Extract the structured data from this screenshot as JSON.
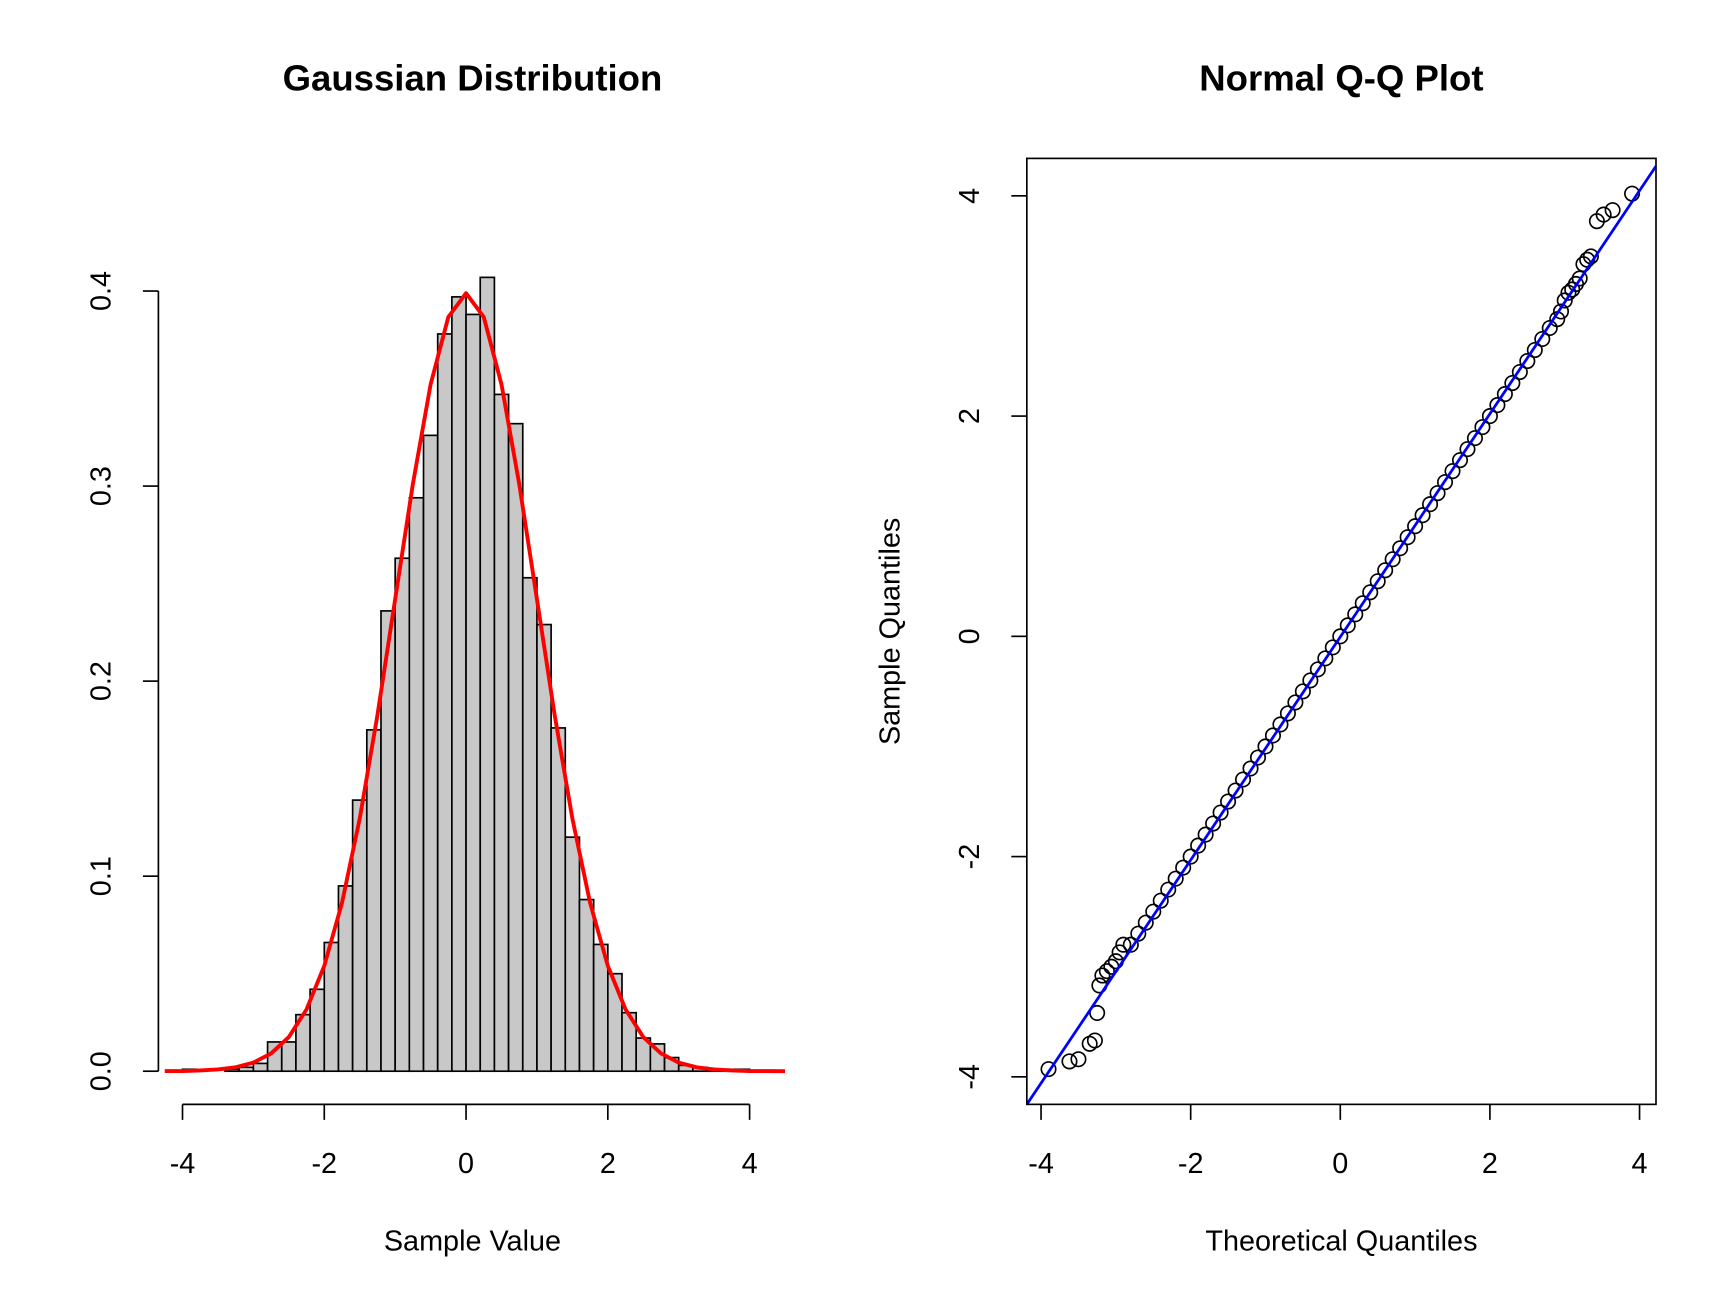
{
  "chart_data": [
    {
      "type": "histogram",
      "title": "Gaussian Distribution",
      "x_label": "Sample Value",
      "bins": [
        -4.0,
        -3.8,
        -3.6,
        -3.4,
        -3.2,
        -3.0,
        -2.8,
        -2.6,
        -2.4,
        -2.2,
        -2.0,
        -1.8,
        -1.6,
        -1.4,
        -1.2,
        -1.0,
        -0.8,
        -0.6,
        -0.4,
        -0.2,
        0.0,
        0.2,
        0.4,
        0.6,
        0.8,
        1.0,
        1.2,
        1.4,
        1.6,
        1.8,
        2.0,
        2.2,
        2.4,
        2.6,
        2.8,
        3.0,
        3.2,
        3.4,
        3.6,
        3.8,
        4.0
      ],
      "values": [
        0.001,
        0,
        0,
        0.001,
        0.002,
        0.004,
        0.015,
        0.015,
        0.029,
        0.042,
        0.066,
        0.095,
        0.139,
        0.175,
        0.236,
        0.263,
        0.294,
        0.326,
        0.378,
        0.397,
        0.388,
        0.407,
        0.347,
        0.332,
        0.253,
        0.229,
        0.176,
        0.12,
        0.088,
        0.065,
        0.05,
        0.03,
        0.017,
        0.014,
        0.007,
        0.003,
        0.002,
        0.001,
        0.001,
        0.001
      ],
      "color": "#c8c8c8",
      "density": {
        "color": "#ff0000",
        "x": [
          -4.25,
          -4,
          -3.75,
          -3.5,
          -3.25,
          -3,
          -2.75,
          -2.5,
          -2.25,
          -2,
          -1.75,
          -1.5,
          -1.25,
          -1,
          -0.75,
          -0.5,
          -0.25,
          0,
          0.25,
          0.5,
          0.75,
          1,
          1.25,
          1.5,
          1.75,
          2,
          2.25,
          2.5,
          2.75,
          3,
          3.25,
          3.5,
          3.75,
          4,
          4.25,
          4.5
        ],
        "values": [
          0.0001,
          0.0001,
          0.0004,
          0.0009,
          0.002,
          0.0044,
          0.0091,
          0.0175,
          0.0317,
          0.054,
          0.0863,
          0.1295,
          0.1826,
          0.242,
          0.3011,
          0.3521,
          0.3867,
          0.3989,
          0.3867,
          0.3521,
          0.3011,
          0.242,
          0.1826,
          0.1295,
          0.0863,
          0.054,
          0.0317,
          0.0175,
          0.0091,
          0.0044,
          0.002,
          0.0009,
          0.0004,
          0.0001,
          0.0001,
          0
        ]
      },
      "xlim": [
        -4.34,
        4.52
      ],
      "ylim": [
        -0.017,
        0.468
      ],
      "xticks": [
        -4,
        -2,
        0,
        2,
        4
      ],
      "yticks": [
        {
          "value": 0,
          "label": "0.0"
        },
        0.1,
        0.2,
        0.3,
        0.4
      ]
    },
    {
      "type": "qq",
      "title": "Normal Q-Q Plot",
      "x_label": "Theoretical Quantiles",
      "y_label": "Sample Quantiles",
      "x": [
        -3.9,
        -3.62,
        -3.5,
        -3.35,
        -3.28,
        -3.25,
        -3.22,
        -3.18,
        -3.12,
        -3.06,
        -3.0,
        -2.95,
        -2.9,
        -2.8,
        -2.7,
        -2.6,
        -2.5,
        -2.4,
        -2.3,
        -2.2,
        -2.1,
        -2.0,
        -1.9,
        -1.8,
        -1.7,
        -1.6,
        -1.5,
        -1.4,
        -1.3,
        -1.2,
        -1.1,
        -1.0,
        -0.9,
        -0.8,
        -0.7,
        -0.6,
        -0.5,
        -0.4,
        -0.3,
        -0.2,
        -0.1,
        0,
        0.1,
        0.2,
        0.3,
        0.4,
        0.5,
        0.6,
        0.7,
        0.8,
        0.9,
        1.0,
        1.1,
        1.2,
        1.3,
        1.4,
        1.5,
        1.6,
        1.7,
        1.8,
        1.9,
        2.0,
        2.1,
        2.2,
        2.3,
        2.4,
        2.5,
        2.6,
        2.7,
        2.8,
        2.9,
        2.95,
        3.0,
        3.05,
        3.1,
        3.15,
        3.2,
        3.25,
        3.3,
        3.35,
        3.43,
        3.52,
        3.64,
        3.9
      ],
      "y": [
        -3.93,
        -3.86,
        -3.84,
        -3.7,
        -3.67,
        -3.42,
        -3.17,
        -3.08,
        -3.04,
        -3.0,
        -2.95,
        -2.87,
        -2.8,
        -2.8,
        -2.7,
        -2.6,
        -2.5,
        -2.4,
        -2.3,
        -2.2,
        -2.1,
        -2.0,
        -1.9,
        -1.8,
        -1.7,
        -1.6,
        -1.5,
        -1.4,
        -1.3,
        -1.2,
        -1.1,
        -1.0,
        -0.9,
        -0.8,
        -0.7,
        -0.6,
        -0.5,
        -0.4,
        -0.3,
        -0.2,
        -0.1,
        0,
        0.1,
        0.2,
        0.3,
        0.4,
        0.5,
        0.6,
        0.7,
        0.8,
        0.9,
        1.0,
        1.1,
        1.2,
        1.3,
        1.4,
        1.5,
        1.6,
        1.7,
        1.8,
        1.9,
        2.0,
        2.1,
        2.2,
        2.3,
        2.4,
        2.5,
        2.6,
        2.7,
        2.8,
        2.88,
        2.95,
        3.05,
        3.12,
        3.15,
        3.2,
        3.25,
        3.38,
        3.42,
        3.45,
        3.77,
        3.83,
        3.87,
        4.02
      ],
      "line": {
        "color": "#0000ff",
        "x": [
          -4.19,
          4.22
        ],
        "y": [
          -4.25,
          4.27
        ]
      },
      "xlim": [
        -4.19,
        4.22
      ],
      "ylim": [
        -4.25,
        4.34
      ],
      "xticks": [
        -4,
        -2,
        0,
        2,
        4
      ],
      "yticks": [
        -4,
        -2,
        0,
        2,
        4
      ]
    }
  ]
}
